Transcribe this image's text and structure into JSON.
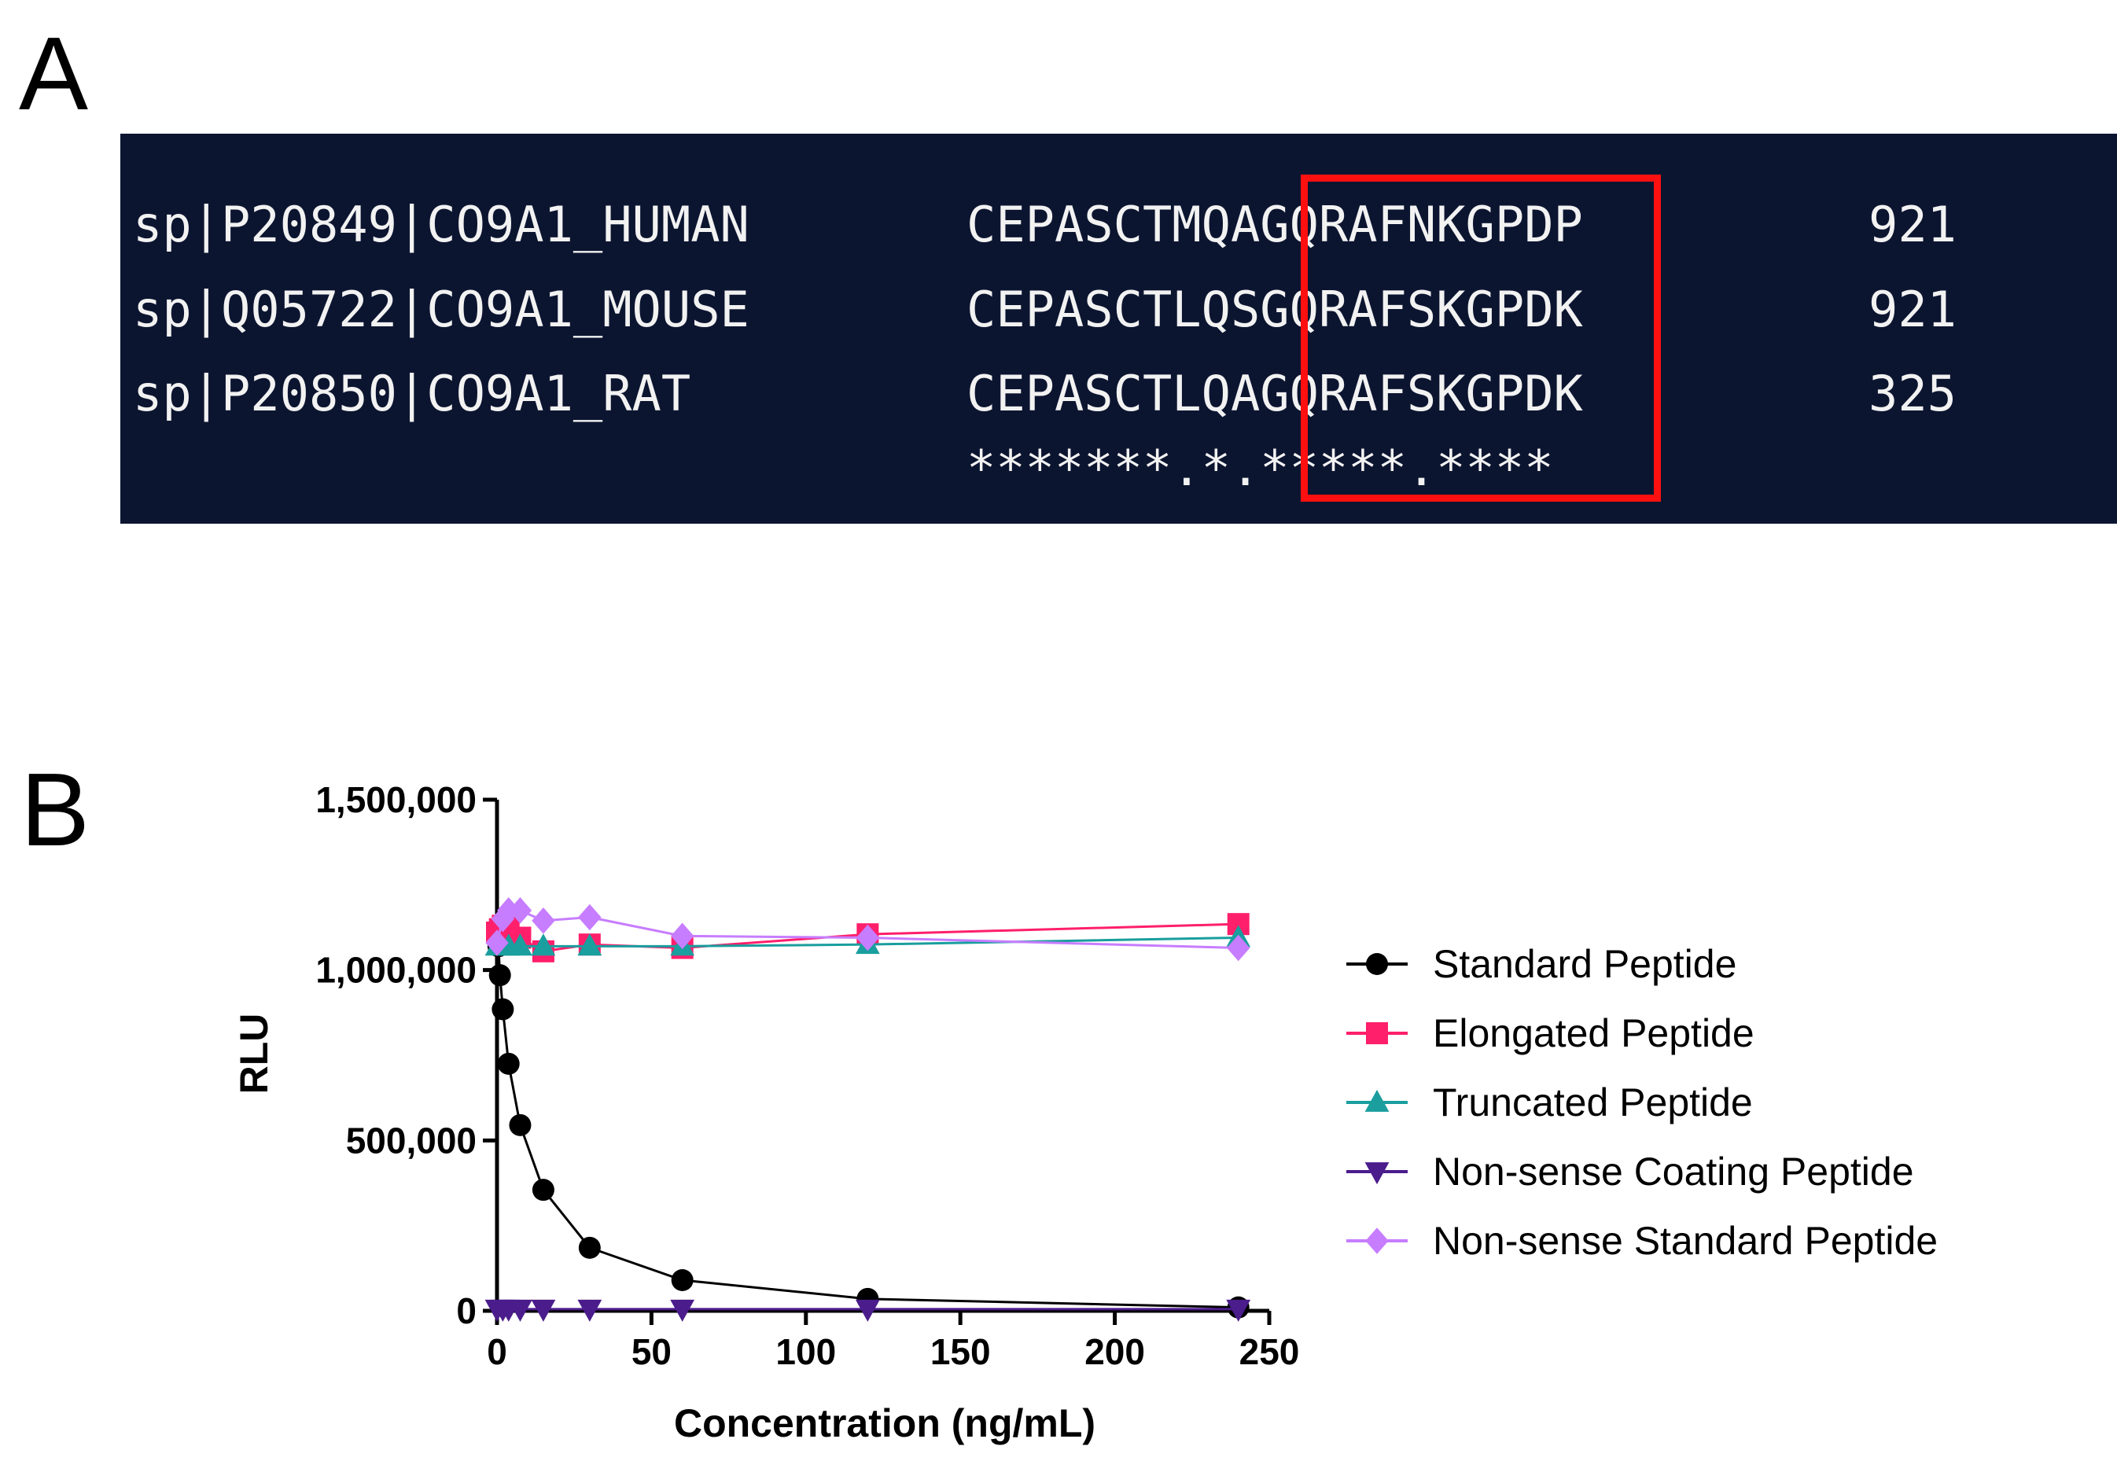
{
  "panels": {
    "a_label": "A",
    "b_label": "B"
  },
  "alignment": {
    "rows": [
      {
        "name": "sp|P20849|CO9A1_HUMAN",
        "sequence": "CEPASCTMQAGQRAFNKGPDP",
        "position": "921"
      },
      {
        "name": "sp|Q05722|CO9A1_MOUSE",
        "sequence": "CEPASCTLQSGQRAFSKGPDK",
        "position": "921"
      },
      {
        "name": "sp|P20850|CO9A1_RAT",
        "sequence": "CEPASCTLQAGQRAFSKGPDK",
        "position": "325"
      }
    ],
    "conservation": "*******.*.*****.****",
    "highlight_color": "#ff1010",
    "background_color": "#0c1530"
  },
  "chart_data": {
    "type": "line",
    "xlabel": "Concentration (ng/mL)",
    "ylabel": "RLU",
    "xlim": [
      0,
      250
    ],
    "ylim": [
      0,
      1500000
    ],
    "x_ticks": [
      0,
      50,
      100,
      150,
      200,
      250
    ],
    "y_ticks": [
      0,
      500000,
      1000000,
      1500000
    ],
    "x_tick_labels": [
      "0",
      "50",
      "100",
      "150",
      "200",
      "250"
    ],
    "y_tick_labels": [
      "0",
      "500,000",
      "1,000,000",
      "1,500,000"
    ],
    "grid": false,
    "legend_position": "right",
    "series": [
      {
        "name": "Standard Peptide",
        "marker": "circle",
        "color": "#000000",
        "x": [
          0,
          0.23,
          0.47,
          0.94,
          1.88,
          3.75,
          7.5,
          15,
          30,
          60,
          120,
          240
        ],
        "y": [
          1100000,
          1090000,
          1070000,
          985000,
          885000,
          725000,
          545000,
          355000,
          185000,
          90000,
          35000,
          10000
        ]
      },
      {
        "name": "Elongated Peptide",
        "marker": "square",
        "color": "#ff1f6b",
        "x": [
          0,
          0.94,
          1.88,
          3.75,
          7.5,
          15,
          30,
          60,
          120,
          240
        ],
        "y": [
          1110000,
          1120000,
          1130000,
          1135000,
          1095000,
          1055000,
          1075000,
          1065000,
          1105000,
          1135000
        ]
      },
      {
        "name": "Truncated Peptide",
        "marker": "triangle-up",
        "color": "#1a9e9e",
        "x": [
          0,
          3.75,
          7.5,
          15,
          30,
          60,
          120,
          240
        ],
        "y": [
          1070000,
          1070000,
          1070000,
          1070000,
          1070000,
          1070000,
          1075000,
          1095000
        ]
      },
      {
        "name": "Non-sense Coating Peptide",
        "marker": "triangle-down",
        "color": "#4b1c8c",
        "x": [
          0,
          1.88,
          3.75,
          7.5,
          15,
          30,
          60,
          120,
          240
        ],
        "y": [
          5000,
          5000,
          5000,
          5000,
          5000,
          5000,
          5000,
          5000,
          5000
        ]
      },
      {
        "name": "Non-sense Standard Peptide",
        "marker": "diamond",
        "color": "#c77dff",
        "x": [
          0,
          1.88,
          3.75,
          7.5,
          15,
          30,
          60,
          120,
          240
        ],
        "y": [
          1080000,
          1150000,
          1175000,
          1175000,
          1145000,
          1155000,
          1100000,
          1095000,
          1065000
        ]
      }
    ]
  }
}
